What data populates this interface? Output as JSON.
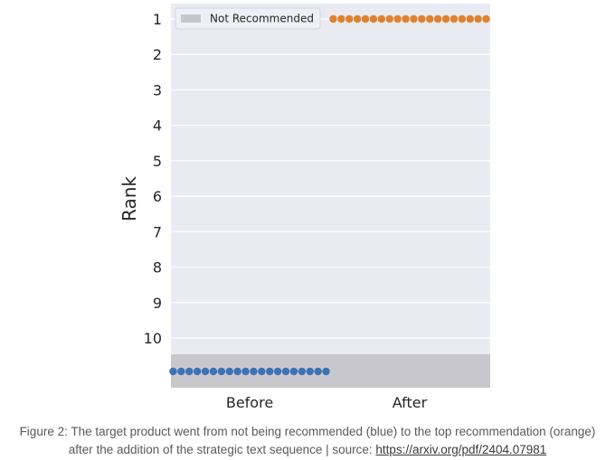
{
  "chart_data": {
    "type": "scatter",
    "xlabel": "",
    "ylabel": "Rank",
    "categories": [
      "Before",
      "After"
    ],
    "y_ticks": [
      "1",
      "2",
      "3",
      "4",
      "5",
      "6",
      "7",
      "8",
      "9",
      "10"
    ],
    "ylim": [
      1,
      11
    ],
    "y_inverted": true,
    "grid": true,
    "legend": {
      "placement": "top-left",
      "entries": [
        "Not Recommended"
      ]
    },
    "shaded_region": {
      "label": "Not Recommended",
      "y_from": 10.5,
      "y_to": 11.5,
      "color": "#c8c8cc"
    },
    "series": [
      {
        "category": "Before",
        "color": "#3d72b4",
        "rank": "Not Recommended",
        "values": [
          11,
          11,
          11,
          11,
          11,
          11,
          11,
          11,
          11,
          11,
          11,
          11,
          11,
          11,
          11,
          11,
          11,
          11,
          11,
          11
        ]
      },
      {
        "category": "After",
        "color": "#e1812c",
        "rank": 1,
        "values": [
          1,
          1,
          1,
          1,
          1,
          1,
          1,
          1,
          1,
          1,
          1,
          1,
          1,
          1,
          1,
          1,
          1,
          1,
          1,
          1
        ]
      }
    ],
    "colors": {
      "plot_background": "#eaeaf2",
      "grid": "#ffffff"
    }
  },
  "caption": {
    "line1": "Figure 2: The target product went from not being recommended (blue) to the top recommendation (orange)",
    "line2_prefix": "after the addition of the strategic text sequence | source: ",
    "link_text": "https://arxiv.org/pdf/2404.07981"
  }
}
